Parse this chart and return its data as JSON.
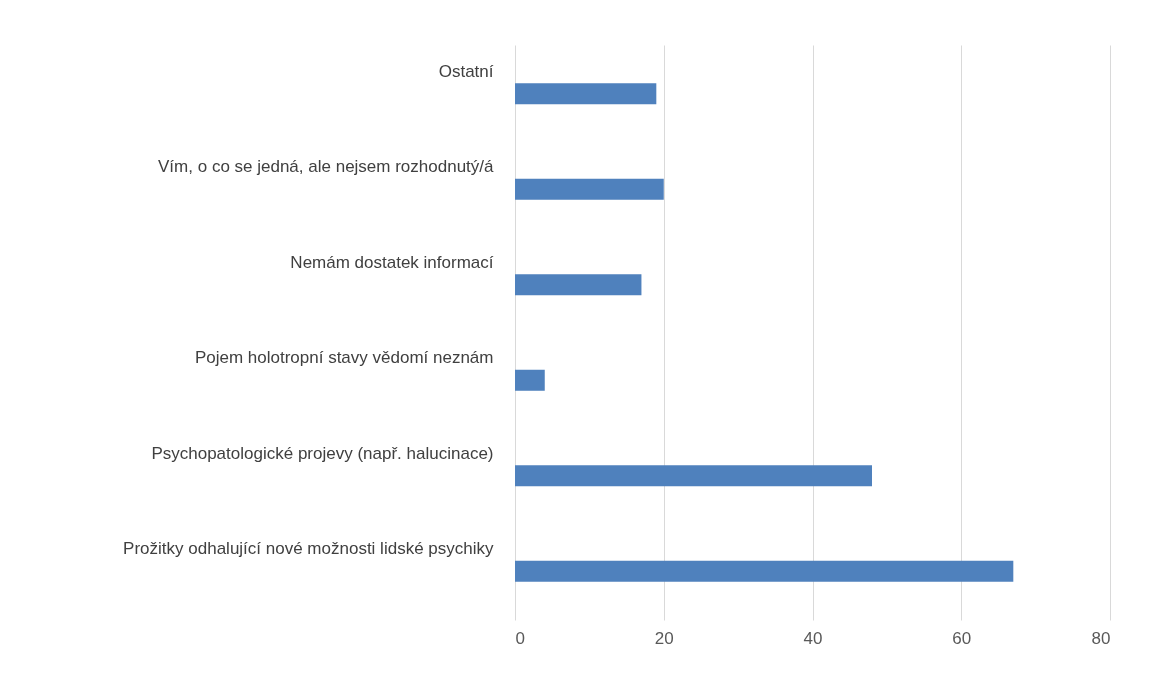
{
  "chart_data": {
    "type": "bar",
    "orientation": "horizontal",
    "categories": [
      "Ostatní",
      "Vím, o co se jedná, ale nejsem rozhodnutý/á",
      "Nemám dostatek informací",
      "Pojem holotropní stavy vědomí neznám",
      "Psychopatologické projevy (např. halucinace)",
      "Prožitky odhalující nové možnosti lidské psychiky"
    ],
    "values": [
      19,
      20,
      17,
      4,
      48,
      67
    ],
    "color": "#4f81bd",
    "xlim": [
      0,
      80
    ],
    "xticks": [
      0,
      20,
      40,
      60,
      80
    ],
    "grid": "x"
  }
}
